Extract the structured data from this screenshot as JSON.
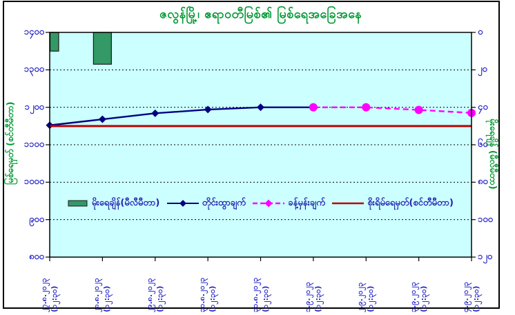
{
  "window": {
    "background": "#FFFFFF",
    "frame_border_color": "#000000"
  },
  "title": {
    "text": "ဇလွန်မြို့၊ ဧရာဝတီမြစ်၏ မြစ်ရေအခြေအနေ",
    "color": "#009933"
  },
  "chart_data": {
    "type": "combo",
    "subtype": "rainfall-bars + water-level lines + danger hline",
    "plot_background": "#CCFFFF",
    "grid": "horizontal dotted black lines every 100 cm",
    "legend_position": "inside plot, lower middle, single row",
    "categories": [
      "၂၇.၈.၂၀၂၃",
      "၂၈.၈.၂၀၂၃",
      "၂၉.၈.၂၀၂၃",
      "၃၀.၈.၂၀၂၃",
      "၃၁.၈.၂၀၂၃",
      "၁.၉.၂၀၂၃",
      "၂.၉.၂၀၂၃",
      "၃.၉.၂၀၂၃",
      "၄.၉.၂၀၂၃"
    ],
    "category_time_suffix": "(၁၂:၃၀)",
    "categories_gregorian": [
      "27.8.2023",
      "28.8.2023",
      "29.8.2023",
      "30.8.2023",
      "31.8.2023",
      "1.9.2023",
      "2.9.2023",
      "3.9.2023",
      "4.9.2023"
    ],
    "observation_time": "12:30",
    "left_axis": {
      "title": "မြစ်ရေမှတ် (စင်တီမီတာ)",
      "min": 800,
      "max": 1400,
      "step": 100,
      "tick_labels_top_to_bottom": [
        "၁၄၀၀",
        "၁၃၀၀",
        "၁၂၀၀",
        "၁၁၀၀",
        "၁၀၀၀",
        "၉၀၀",
        "၈၀၀"
      ],
      "tick_values_top_to_bottom": [
        1400,
        1300,
        1200,
        1100,
        1000,
        900,
        800
      ],
      "title_color": "#009933",
      "tick_color": "#2A2AC8"
    },
    "right_axis": {
      "title": "မိုးရေချိန် (မီလီမီတာ)",
      "min": 0,
      "max": 120,
      "step": 20,
      "direction": "increases-downward",
      "tick_labels_top_to_bottom": [
        "၀",
        "၂၀",
        "၄၀",
        "၆၀",
        "၈၀",
        "၁၀၀",
        "၁၂၀"
      ],
      "tick_values_top_to_bottom": [
        0,
        20,
        40,
        60,
        80,
        100,
        120
      ],
      "title_color": "#009933",
      "tick_color": "#2A2AC8"
    },
    "series": [
      {
        "name": "မိုးရေချိန်(မီလီမီတာ)",
        "semantic": "rainfall",
        "type": "bar",
        "axis": "right",
        "color": "#339966",
        "border_color": "#1A1A1A",
        "values_mm": [
          10,
          17,
          0,
          0,
          0,
          0,
          0,
          0,
          0
        ]
      },
      {
        "name": "တိုင်းထွာချက်",
        "semantic": "observed-water-level",
        "type": "line",
        "axis": "left",
        "color": "#000080",
        "marker": "diamond",
        "values_cm": [
          1152,
          1168,
          1184,
          1194,
          1200,
          1200,
          null,
          null,
          null
        ]
      },
      {
        "name": "ခန့်မှန်းချက်",
        "semantic": "forecast-water-level",
        "type": "dashed-line",
        "axis": "left",
        "color": "#FF00FF",
        "marker": "circle",
        "values_cm": [
          null,
          null,
          null,
          null,
          null,
          1200,
          1200,
          1193,
          1185
        ]
      },
      {
        "name": "စိုးရိမ်ရေမှတ်(စင်တီမီတာ)",
        "semantic": "danger-level",
        "type": "horizontal-line",
        "axis": "left",
        "color": "#C00000",
        "value_cm": 1150
      }
    ]
  }
}
